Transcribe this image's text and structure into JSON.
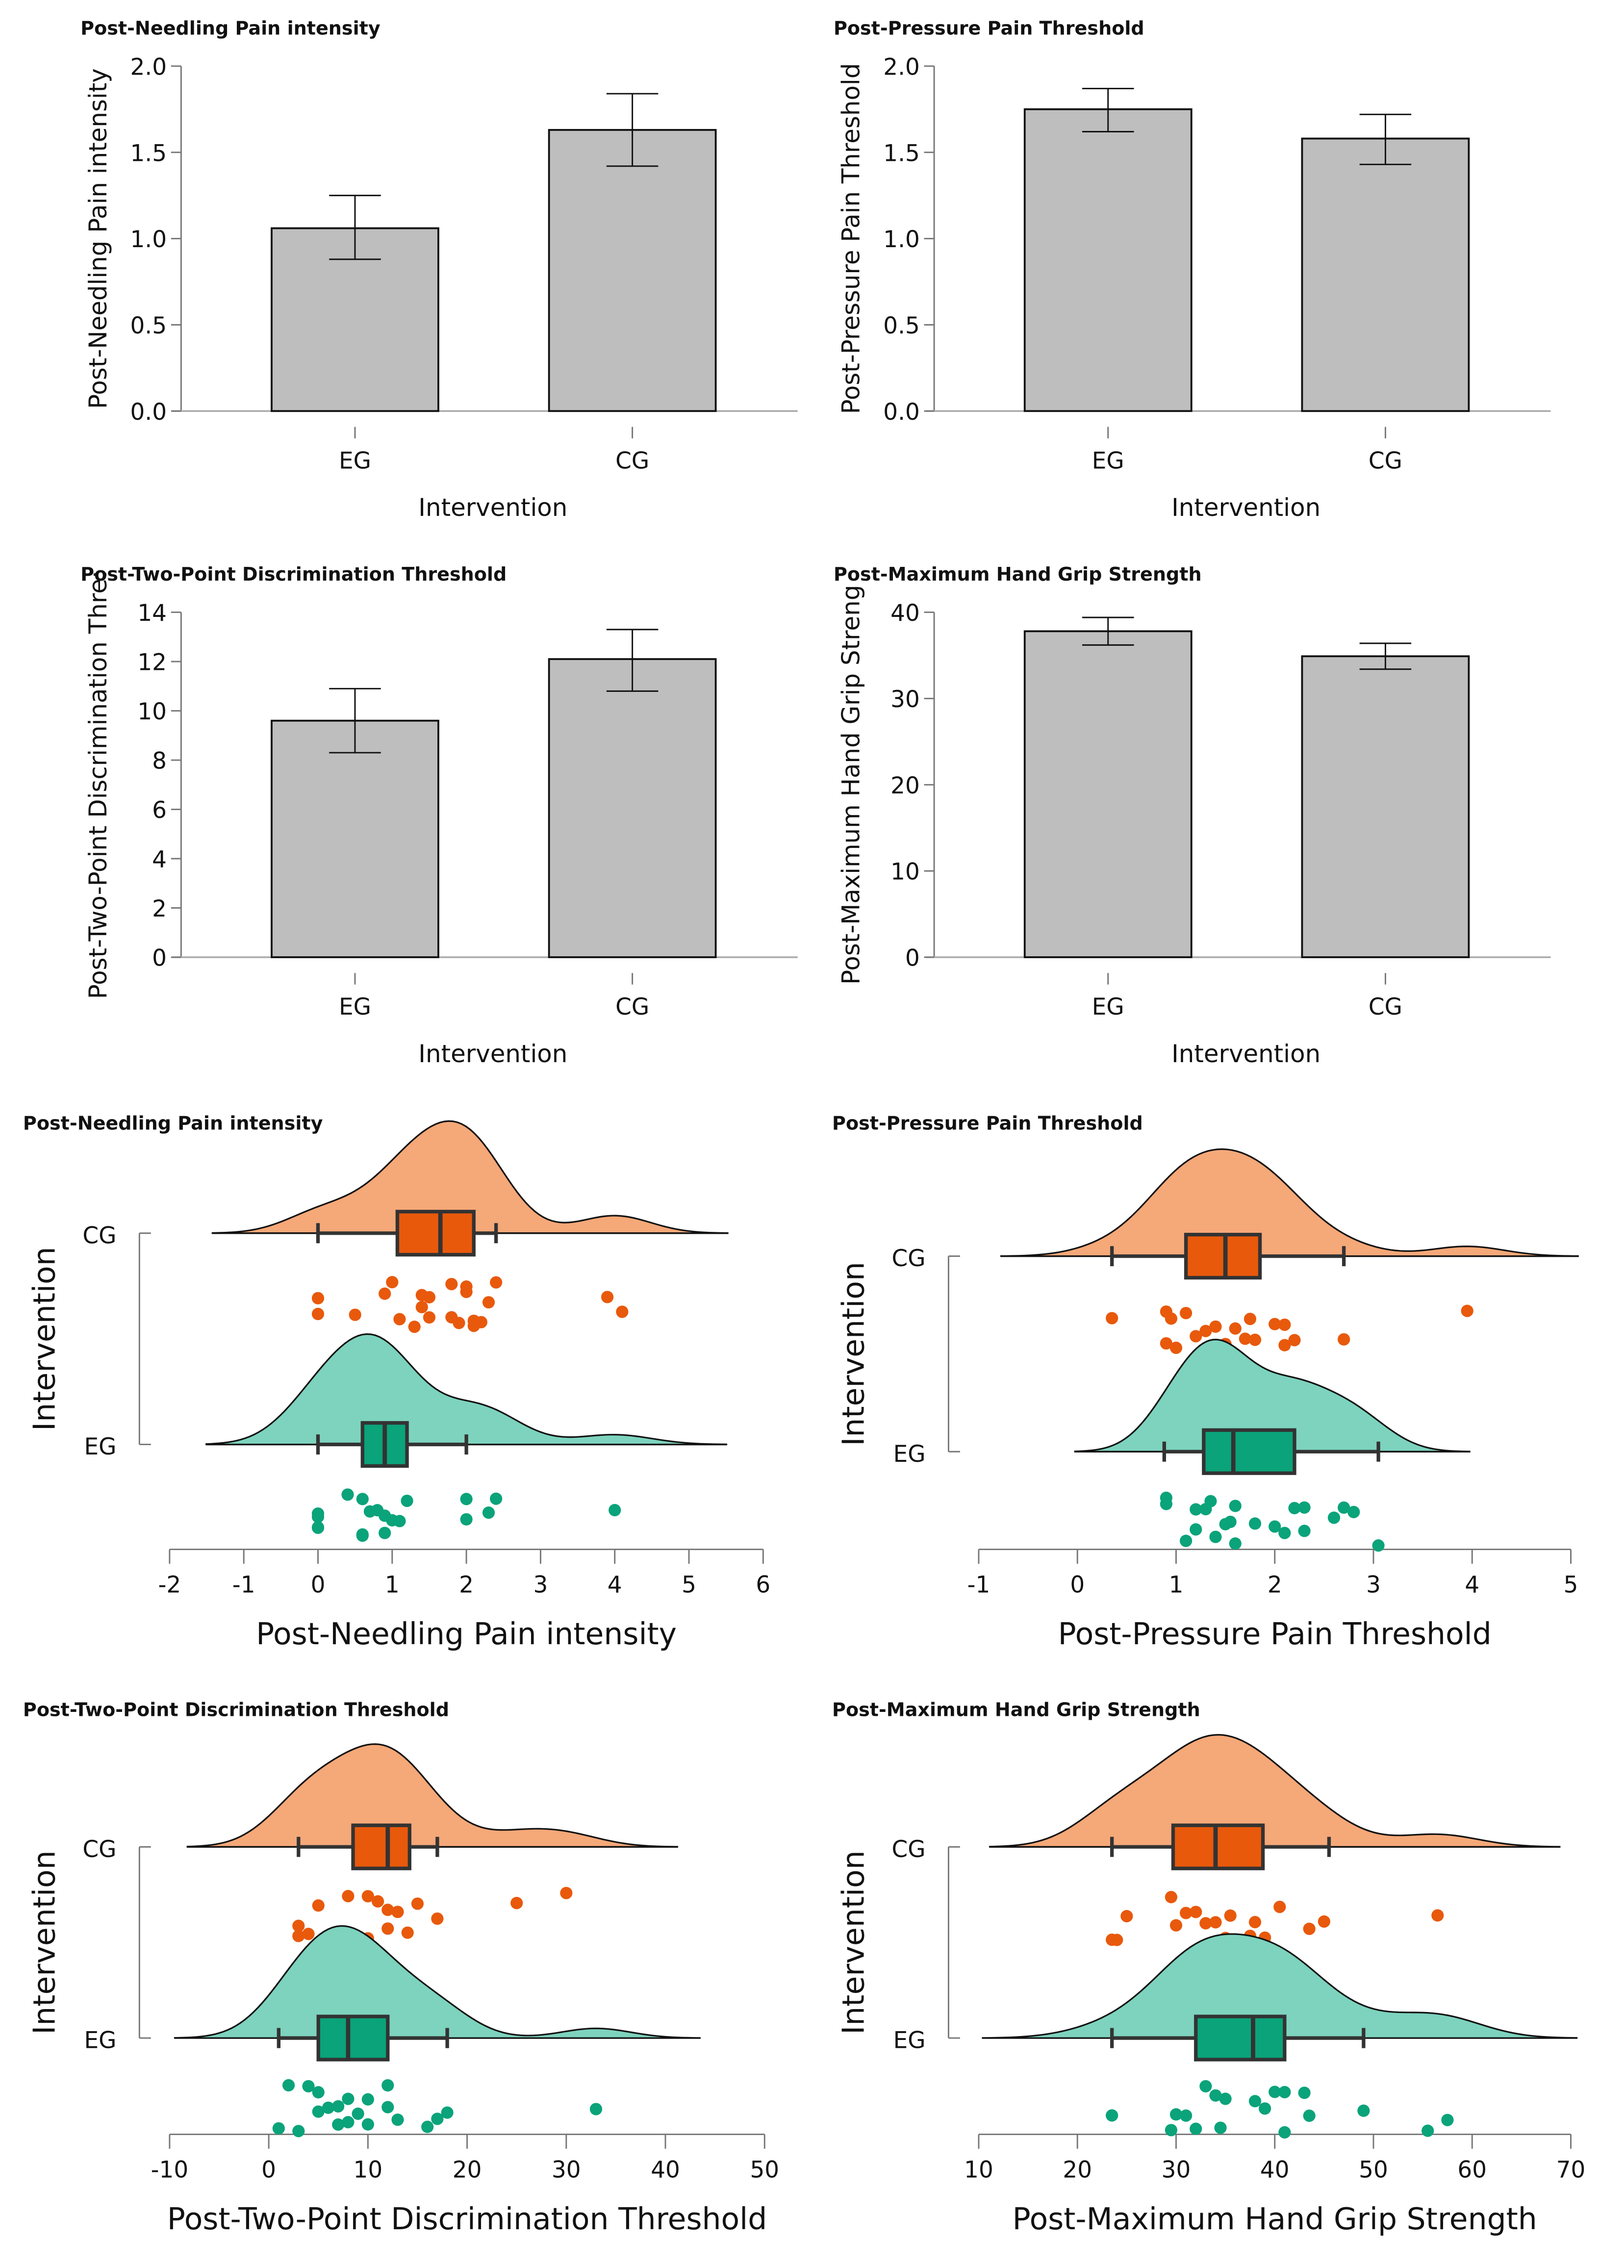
{
  "chart_data": [
    {
      "type": "bar",
      "title": "Post-Needling Pain intensity",
      "ylabel": "Post-Needling Pain intensity",
      "xlabel": "Intervention",
      "categories": [
        "EG",
        "CG"
      ],
      "values": [
        1.06,
        1.63
      ],
      "error_low": [
        0.88,
        1.42
      ],
      "error_high": [
        1.25,
        1.84
      ],
      "ylim": [
        0,
        2
      ],
      "yticks": [
        "0.0",
        "0.5",
        "1.0",
        "1.5",
        "2.0"
      ],
      "grid": false
    },
    {
      "type": "bar",
      "title": "Post-Pressure Pain Threshold",
      "ylabel": "Post-Pressure Pain Threshold",
      "xlabel": "Intervention",
      "categories": [
        "EG",
        "CG"
      ],
      "values": [
        1.75,
        1.58
      ],
      "error_low": [
        1.62,
        1.43
      ],
      "error_high": [
        1.87,
        1.72
      ],
      "ylim": [
        0,
        2
      ],
      "yticks": [
        "0.0",
        "0.5",
        "1.0",
        "1.5",
        "2.0"
      ],
      "grid": false
    },
    {
      "type": "bar",
      "title": "Post-Two-Point Discrimination Threshold",
      "ylabel": "Post-Two-Point Discrimination Thre:",
      "xlabel": "Intervention",
      "categories": [
        "EG",
        "CG"
      ],
      "values": [
        9.6,
        12.1
      ],
      "error_low": [
        8.3,
        10.8
      ],
      "error_high": [
        10.9,
        13.3
      ],
      "ylim": [
        0,
        14
      ],
      "yticks": [
        "0",
        "2",
        "4",
        "6",
        "8",
        "10",
        "12",
        "14"
      ],
      "grid": false
    },
    {
      "type": "bar",
      "title": "Post-Maximum Hand Grip Strength",
      "ylabel": "Post-Maximum Hand Grip Streng",
      "xlabel": "Intervention",
      "categories": [
        "EG",
        "CG"
      ],
      "values": [
        37.8,
        34.9
      ],
      "error_low": [
        36.2,
        33.4
      ],
      "error_high": [
        39.4,
        36.4
      ],
      "ylim": [
        0,
        40
      ],
      "yticks": [
        "0",
        "10",
        "20",
        "30",
        "40"
      ],
      "grid": false
    },
    {
      "type": "raincloud",
      "title": "Post-Needling Pain intensity",
      "xlabel": "Post-Needling Pain intensity",
      "ylabel": "Intervention",
      "xlim": [
        -2,
        6
      ],
      "xticks": [
        "-2",
        "-1",
        "0",
        "1",
        "2",
        "3",
        "4",
        "5",
        "6"
      ],
      "groups": [
        {
          "name": "CG",
          "color": "#e8590c",
          "fill": "#f5a878",
          "box": {
            "min": 0,
            "q1": 1.07,
            "median": 1.65,
            "q3": 2.1,
            "max": 2.4
          },
          "points": [
            0,
            0,
            0.5,
            0.9,
            1.0,
            1.1,
            1.3,
            1.4,
            1.4,
            1.5,
            1.5,
            1.8,
            1.8,
            1.9,
            2.0,
            2.0,
            2.1,
            2.1,
            2.2,
            2.3,
            2.4,
            3.9,
            4.1
          ]
        },
        {
          "name": "EG",
          "color": "#0aa37a",
          "fill": "#7dd3be",
          "box": {
            "min": 0,
            "q1": 0.6,
            "median": 0.9,
            "q3": 1.2,
            "max": 2.0
          },
          "points": [
            0,
            0,
            0,
            0,
            0.4,
            0.6,
            0.6,
            0.6,
            0.7,
            0.8,
            0.9,
            0.9,
            1.0,
            1.1,
            1.2,
            2.0,
            2.0,
            2.3,
            2.4,
            4.0
          ]
        }
      ]
    },
    {
      "type": "raincloud",
      "title": "Post-Pressure Pain Threshold",
      "xlabel": "Post-Pressure Pain Threshold",
      "ylabel": "Intervention",
      "xlim": [
        -1,
        5
      ],
      "xticks": [
        "-1",
        "0",
        "1",
        "2",
        "3",
        "4",
        "5"
      ],
      "groups": [
        {
          "name": "CG",
          "color": "#e8590c",
          "fill": "#f5a878",
          "box": {
            "min": 0.35,
            "q1": 1.1,
            "median": 1.5,
            "q3": 1.85,
            "max": 2.7
          },
          "points": [
            0.35,
            0.9,
            0.9,
            0.95,
            1.0,
            1.1,
            1.2,
            1.3,
            1.4,
            1.5,
            1.5,
            1.6,
            1.7,
            1.75,
            1.8,
            2.0,
            2.1,
            2.1,
            2.2,
            2.7,
            3.95
          ]
        },
        {
          "name": "EG",
          "color": "#0aa37a",
          "fill": "#7dd3be",
          "box": {
            "min": 0.88,
            "q1": 1.28,
            "median": 1.58,
            "q3": 2.2,
            "max": 3.05
          },
          "points": [
            0.9,
            0.9,
            1.1,
            1.2,
            1.2,
            1.3,
            1.35,
            1.4,
            1.5,
            1.55,
            1.6,
            1.6,
            1.8,
            2.0,
            2.1,
            2.2,
            2.3,
            2.3,
            2.6,
            2.7,
            2.8,
            3.05
          ]
        }
      ]
    },
    {
      "type": "raincloud",
      "title": "Post-Two-Point Discrimination Threshold",
      "xlabel": "Post-Two-Point Discrimination Threshold",
      "ylabel": "Intervention",
      "xlim": [
        -10,
        50
      ],
      "xticks": [
        "-10",
        "0",
        "10",
        "20",
        "30",
        "40",
        "50"
      ],
      "groups": [
        {
          "name": "CG",
          "color": "#e8590c",
          "fill": "#f5a878",
          "box": {
            "min": 3,
            "q1": 8.5,
            "median": 12,
            "q3": 14.2,
            "max": 17
          },
          "points": [
            3,
            3,
            4,
            5,
            7,
            8,
            10,
            10,
            11,
            12,
            12,
            13,
            14,
            15,
            17,
            25,
            30
          ]
        },
        {
          "name": "EG",
          "color": "#0aa37a",
          "fill": "#7dd3be",
          "box": {
            "min": 1,
            "q1": 5,
            "median": 8,
            "q3": 12,
            "max": 18
          },
          "points": [
            1,
            2,
            3,
            4,
            5,
            5,
            6,
            7,
            7,
            8,
            8,
            9,
            10,
            10,
            12,
            12,
            13,
            16,
            17,
            18,
            33
          ]
        }
      ]
    },
    {
      "type": "raincloud",
      "title": "Post-Maximum Hand Grip Strength",
      "xlabel": "Post-Maximum Hand Grip Strength",
      "ylabel": "Intervention",
      "xlim": [
        10,
        70
      ],
      "xticks": [
        "10",
        "20",
        "30",
        "40",
        "50",
        "60",
        "70"
      ],
      "groups": [
        {
          "name": "CG",
          "color": "#e8590c",
          "fill": "#f5a878",
          "box": {
            "min": 23.5,
            "q1": 29.7,
            "median": 34,
            "q3": 38.8,
            "max": 45.5
          },
          "points": [
            23.5,
            24,
            25,
            29.5,
            30,
            31,
            32,
            33,
            34,
            35,
            35.5,
            37.5,
            38,
            39,
            40.5,
            43.5,
            45,
            56.5
          ]
        },
        {
          "name": "EG",
          "color": "#0aa37a",
          "fill": "#7dd3be",
          "box": {
            "min": 23.5,
            "q1": 32,
            "median": 37.8,
            "q3": 41,
            "max": 49
          },
          "points": [
            23.5,
            29.5,
            30,
            31,
            32,
            33,
            34,
            34.5,
            35,
            38,
            39,
            40,
            41,
            41,
            43,
            43.5,
            49,
            55.5,
            57.5
          ]
        }
      ]
    }
  ]
}
